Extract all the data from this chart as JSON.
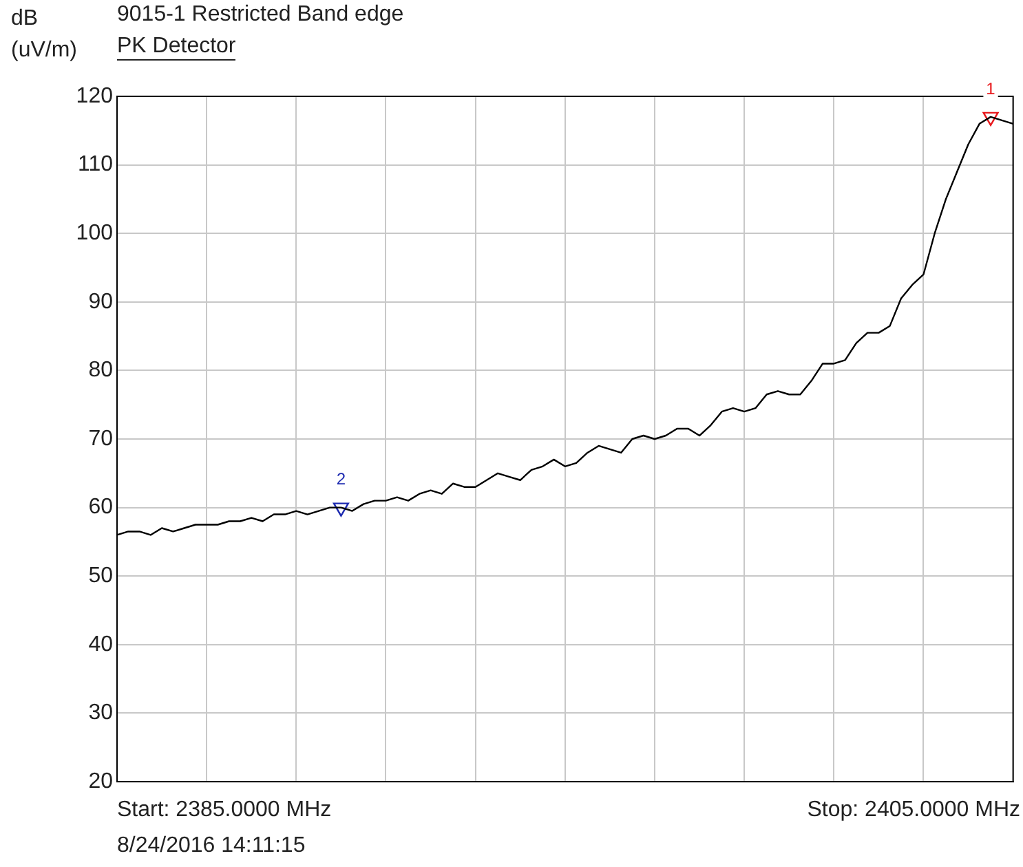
{
  "chart_data": {
    "type": "line",
    "title": "9015-1 Restricted Band edge",
    "subtitle": "PK Detector",
    "ylabel": "dB (uV/m)",
    "annotations": [
      "Start: 2385.0000 MHz",
      "Stop: 2405.0000 MHz",
      "8/24/2016 14:11:15"
    ],
    "categories": [
      null,
      null,
      null,
      null,
      null,
      null,
      null,
      null,
      null,
      null,
      null,
      null,
      null,
      null,
      null,
      null,
      null,
      null,
      null,
      null,
      null,
      null,
      null,
      null,
      null,
      null,
      null,
      null,
      null,
      null,
      null,
      null,
      null,
      null,
      null,
      null,
      null,
      null,
      null,
      null,
      null,
      null,
      null,
      null,
      null,
      null,
      null,
      null,
      null,
      null,
      null,
      null,
      null,
      null,
      null,
      null,
      null,
      null,
      null,
      null,
      null,
      null,
      null,
      null,
      null,
      null,
      null,
      null,
      null,
      null,
      null,
      null,
      null,
      null,
      null,
      null,
      null,
      null,
      null,
      null,
      null
    ],
    "ylim": [
      20,
      120
    ],
    "yticks": [
      20,
      30,
      40,
      50,
      60,
      70,
      80,
      90,
      100,
      110,
      120
    ],
    "tick_labels": "y",
    "grid": true,
    "marker": "none",
    "line_style": "solid",
    "series": [
      {
        "color": "#000000",
        "values": [
          56,
          56.5,
          56.5,
          56,
          57,
          56.5,
          57,
          57.5,
          57.5,
          57.5,
          58,
          58,
          58.5,
          58,
          59,
          59,
          59.5,
          59,
          59.5,
          60,
          60,
          59.5,
          60.5,
          61,
          61,
          61.5,
          61,
          62,
          62.5,
          62,
          63.5,
          63,
          63,
          64,
          65,
          64.5,
          64,
          65.5,
          66,
          67,
          66,
          66.5,
          68,
          69,
          68.5,
          68,
          70,
          70.5,
          70,
          70.5,
          71.5,
          71.5,
          70.5,
          72,
          74,
          74.5,
          74,
          74.5,
          76.5,
          77,
          76.5,
          76.5,
          78.5,
          81,
          81,
          81.5,
          84,
          85.5,
          85.5,
          86.5,
          90.5,
          92.5,
          94,
          100,
          105,
          109,
          113,
          116,
          117,
          116.5,
          116
        ]
      },
      {
        "type": "scatter",
        "marker": "triangle",
        "name": "1",
        "color": "#e8181c",
        "values": [
          null,
          null,
          null,
          null,
          null,
          null,
          null,
          null,
          null,
          null,
          null,
          null,
          null,
          null,
          null,
          null,
          null,
          null,
          null,
          null,
          null,
          null,
          null,
          null,
          null,
          null,
          null,
          null,
          null,
          null,
          null,
          null,
          null,
          null,
          null,
          null,
          null,
          null,
          null,
          null,
          null,
          null,
          null,
          null,
          null,
          null,
          null,
          null,
          null,
          null,
          null,
          null,
          null,
          null,
          null,
          null,
          null,
          null,
          null,
          null,
          null,
          null,
          null,
          null,
          null,
          null,
          null,
          null,
          null,
          null,
          null,
          null,
          null,
          null,
          null,
          null,
          null,
          null,
          117,
          null,
          null
        ]
      },
      {
        "type": "scatter",
        "marker": "triangle",
        "name": "2",
        "color": "#1c2ab0",
        "values": [
          null,
          null,
          null,
          null,
          null,
          null,
          null,
          null,
          null,
          null,
          null,
          null,
          null,
          null,
          null,
          null,
          null,
          null,
          null,
          null,
          60,
          null,
          null,
          null,
          null,
          null,
          null,
          null,
          null,
          null,
          null,
          null,
          null,
          null,
          null,
          null,
          null,
          null,
          null,
          null,
          null,
          null,
          null,
          null,
          null,
          null,
          null,
          null,
          null,
          null,
          null,
          null,
          null,
          null,
          null,
          null,
          null,
          null,
          null,
          null,
          null,
          null,
          null,
          null,
          null,
          null,
          null,
          null,
          null,
          null,
          null,
          null,
          null,
          null,
          null,
          null,
          null,
          null,
          null,
          null,
          null
        ]
      }
    ]
  }
}
